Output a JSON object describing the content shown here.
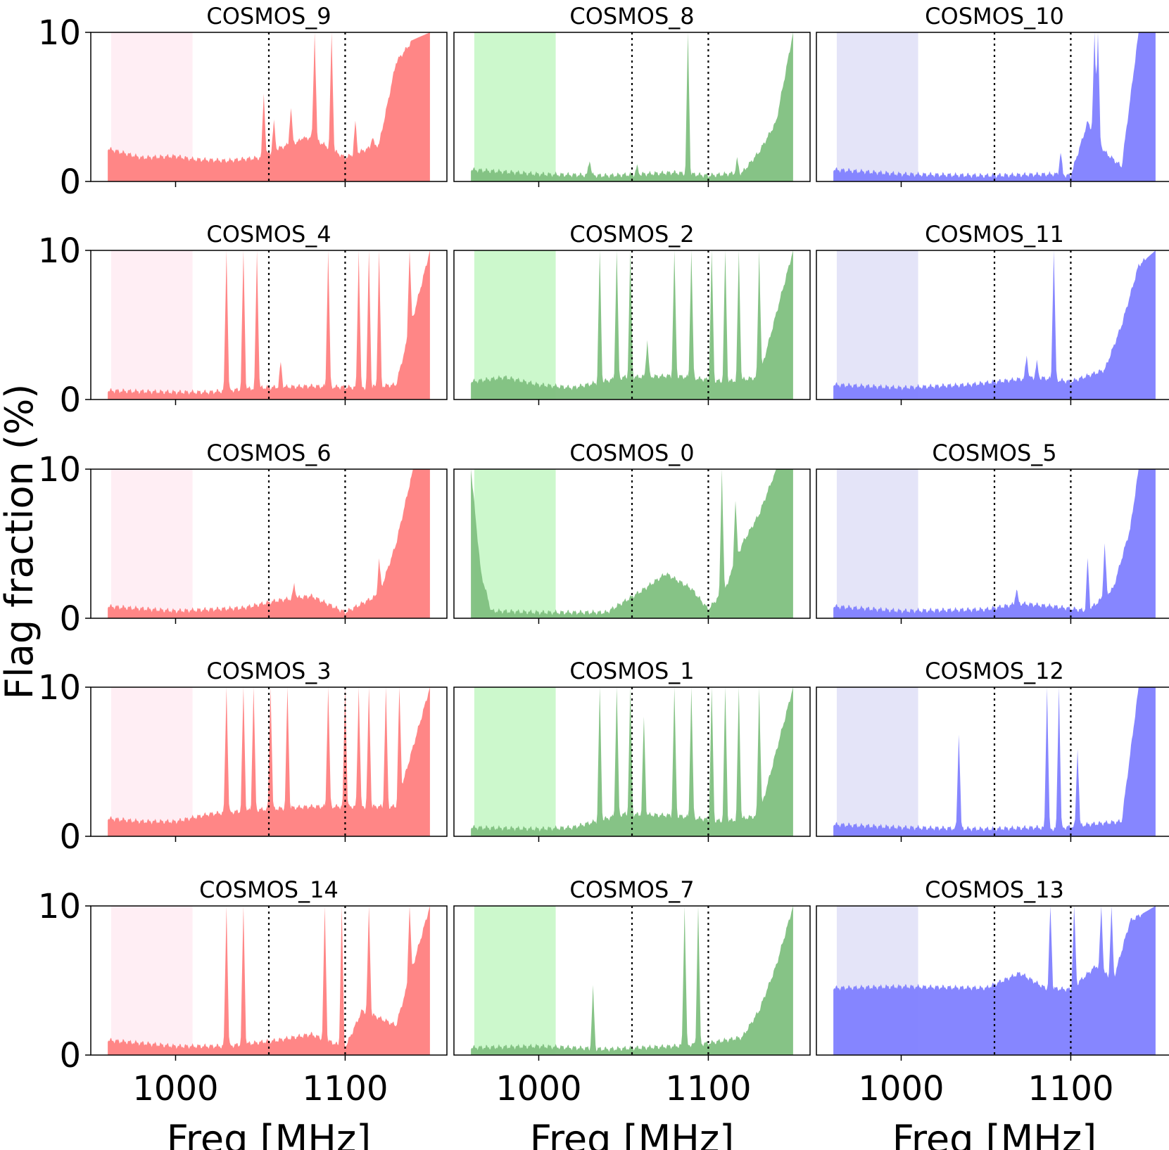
{
  "chart_data": {
    "type": "area",
    "ylabel": "Flag fraction (%)",
    "xlabel": "Freq [MHz]",
    "xlim": [
      950,
      1160
    ],
    "ylim": [
      0,
      10
    ],
    "xticks": [
      1000,
      1100
    ],
    "yticks": [
      0,
      10
    ],
    "markers": [
      1055,
      1100
    ],
    "band": [
      962,
      1010
    ],
    "colors": {
      "red": "#ff8080",
      "red_band": "#ffeef4",
      "green": "#80c080",
      "green_band": "#ccf8cc",
      "blue": "#8080ff",
      "blue_band": "#e4e4f8"
    },
    "panels": [
      {
        "title": "COSMOS_9",
        "color": "red",
        "range": [
          960,
          1150
        ],
        "base": [
          [
            960,
            2.2
          ],
          [
            980,
            1.6
          ],
          [
            1000,
            1.7
          ],
          [
            1010,
            1.5
          ],
          [
            1030,
            1.4
          ],
          [
            1050,
            1.6
          ],
          [
            1060,
            2.2
          ],
          [
            1080,
            3
          ],
          [
            1100,
            1.6
          ],
          [
            1120,
            2.5
          ],
          [
            1130,
            8
          ],
          [
            1140,
            9.5
          ],
          [
            1150,
            10
          ]
        ],
        "spikes": [
          [
            1052,
            6
          ],
          [
            1058,
            4
          ],
          [
            1068,
            5
          ],
          [
            1075,
            3
          ],
          [
            1082,
            10
          ],
          [
            1092,
            10
          ],
          [
            1106,
            4
          ],
          [
            1116,
            3
          ]
        ]
      },
      {
        "title": "COSMOS_8",
        "color": "green",
        "range": [
          960,
          1150
        ],
        "base": [
          [
            960,
            0.8
          ],
          [
            1000,
            0.5
          ],
          [
            1040,
            0.4
          ],
          [
            1080,
            0.6
          ],
          [
            1100,
            0.4
          ],
          [
            1120,
            0.6
          ],
          [
            1130,
            2
          ],
          [
            1140,
            4
          ],
          [
            1150,
            10
          ]
        ],
        "spikes": [
          [
            1088,
            10
          ],
          [
            1030,
            1.5
          ],
          [
            1058,
            1
          ],
          [
            1117,
            1.5
          ]
        ]
      },
      {
        "title": "COSMOS_10",
        "color": "blue",
        "range": [
          960,
          1150
        ],
        "base": [
          [
            960,
            0.8
          ],
          [
            1000,
            0.5
          ],
          [
            1050,
            0.4
          ],
          [
            1090,
            0.5
          ],
          [
            1100,
            0.4
          ],
          [
            1110,
            4
          ],
          [
            1120,
            2
          ],
          [
            1130,
            1
          ],
          [
            1140,
            10
          ],
          [
            1150,
            10
          ]
        ],
        "spikes": [
          [
            1114,
            10
          ],
          [
            1094,
            2
          ],
          [
            1116,
            10
          ]
        ]
      },
      {
        "title": "COSMOS_4",
        "color": "red",
        "range": [
          960,
          1150
        ],
        "base": [
          [
            960,
            0.6
          ],
          [
            1000,
            0.5
          ],
          [
            1020,
            0.5
          ],
          [
            1050,
            0.8
          ],
          [
            1080,
            0.9
          ],
          [
            1110,
            0.8
          ],
          [
            1130,
            1
          ],
          [
            1150,
            10
          ]
        ],
        "spikes": [
          [
            1030,
            10
          ],
          [
            1040,
            10
          ],
          [
            1048,
            10
          ],
          [
            1062,
            2.5
          ],
          [
            1090,
            10
          ],
          [
            1108,
            10
          ],
          [
            1114,
            10
          ],
          [
            1120,
            10
          ],
          [
            1138,
            10
          ]
        ]
      },
      {
        "title": "COSMOS_2",
        "color": "green",
        "range": [
          960,
          1150
        ],
        "base": [
          [
            960,
            1.2
          ],
          [
            980,
            1.5
          ],
          [
            1000,
            1
          ],
          [
            1020,
            0.8
          ],
          [
            1050,
            1.5
          ],
          [
            1080,
            1.6
          ],
          [
            1110,
            1.2
          ],
          [
            1130,
            1.5
          ],
          [
            1150,
            10
          ]
        ],
        "spikes": [
          [
            1036,
            10
          ],
          [
            1046,
            10
          ],
          [
            1054,
            10
          ],
          [
            1064,
            4
          ],
          [
            1080,
            10
          ],
          [
            1090,
            10
          ],
          [
            1102,
            10
          ],
          [
            1110,
            10
          ],
          [
            1118,
            10
          ],
          [
            1130,
            10
          ]
        ]
      },
      {
        "title": "COSMOS_11",
        "color": "blue",
        "range": [
          960,
          1150
        ],
        "base": [
          [
            960,
            1
          ],
          [
            1000,
            0.8
          ],
          [
            1040,
            1
          ],
          [
            1080,
            1.5
          ],
          [
            1100,
            1.2
          ],
          [
            1120,
            2
          ],
          [
            1130,
            5
          ],
          [
            1140,
            9
          ],
          [
            1150,
            10
          ]
        ],
        "spikes": [
          [
            1090,
            10
          ],
          [
            1074,
            3
          ],
          [
            1080,
            2.5
          ]
        ]
      },
      {
        "title": "COSMOS_6",
        "color": "red",
        "range": [
          960,
          1150
        ],
        "base": [
          [
            960,
            0.8
          ],
          [
            1000,
            0.5
          ],
          [
            1040,
            0.7
          ],
          [
            1060,
            1.2
          ],
          [
            1080,
            1.5
          ],
          [
            1100,
            0.4
          ],
          [
            1120,
            1.6
          ],
          [
            1130,
            5
          ],
          [
            1140,
            10
          ],
          [
            1150,
            10
          ]
        ],
        "spikes": [
          [
            1070,
            2.3
          ],
          [
            1120,
            4
          ]
        ]
      },
      {
        "title": "COSMOS_0",
        "color": "green",
        "range": [
          960,
          1150
        ],
        "base": [
          [
            960,
            10
          ],
          [
            966,
            3
          ],
          [
            972,
            0.5
          ],
          [
            1000,
            0.4
          ],
          [
            1040,
            0.4
          ],
          [
            1060,
            1.8
          ],
          [
            1075,
            3
          ],
          [
            1090,
            2
          ],
          [
            1100,
            0.6
          ],
          [
            1110,
            2
          ],
          [
            1120,
            5
          ],
          [
            1130,
            7
          ],
          [
            1140,
            10
          ],
          [
            1150,
            10
          ]
        ],
        "spikes": [
          [
            1108,
            10
          ],
          [
            1116,
            8
          ]
        ]
      },
      {
        "title": "COSMOS_5",
        "color": "blue",
        "range": [
          960,
          1150
        ],
        "base": [
          [
            960,
            0.8
          ],
          [
            1000,
            0.5
          ],
          [
            1050,
            0.6
          ],
          [
            1070,
            1
          ],
          [
            1090,
            0.8
          ],
          [
            1110,
            0.5
          ],
          [
            1125,
            2
          ],
          [
            1135,
            6
          ],
          [
            1140,
            10
          ],
          [
            1150,
            10
          ]
        ],
        "spikes": [
          [
            1068,
            2
          ],
          [
            1110,
            4
          ],
          [
            1120,
            5
          ]
        ]
      },
      {
        "title": "COSMOS_3",
        "color": "red",
        "range": [
          960,
          1150
        ],
        "base": [
          [
            960,
            1.2
          ],
          [
            980,
            1
          ],
          [
            1000,
            1
          ],
          [
            1020,
            1.5
          ],
          [
            1050,
            1.8
          ],
          [
            1080,
            2
          ],
          [
            1110,
            2
          ],
          [
            1130,
            2
          ],
          [
            1150,
            10
          ]
        ],
        "spikes": [
          [
            1030,
            10
          ],
          [
            1040,
            10
          ],
          [
            1046,
            10
          ],
          [
            1056,
            10
          ],
          [
            1066,
            10
          ],
          [
            1090,
            10
          ],
          [
            1100,
            10
          ],
          [
            1108,
            10
          ],
          [
            1114,
            10
          ],
          [
            1124,
            10
          ],
          [
            1132,
            10
          ]
        ]
      },
      {
        "title": "COSMOS_1",
        "color": "green",
        "range": [
          960,
          1150
        ],
        "base": [
          [
            960,
            0.6
          ],
          [
            1000,
            0.5
          ],
          [
            1020,
            0.6
          ],
          [
            1050,
            1.5
          ],
          [
            1080,
            1.4
          ],
          [
            1110,
            1
          ],
          [
            1130,
            1.4
          ],
          [
            1150,
            10
          ]
        ],
        "spikes": [
          [
            1036,
            10
          ],
          [
            1046,
            10
          ],
          [
            1054,
            10
          ],
          [
            1062,
            8
          ],
          [
            1080,
            10
          ],
          [
            1090,
            10
          ],
          [
            1102,
            10
          ],
          [
            1110,
            10
          ],
          [
            1118,
            10
          ],
          [
            1130,
            10
          ]
        ]
      },
      {
        "title": "COSMOS_12",
        "color": "blue",
        "range": [
          960,
          1150
        ],
        "base": [
          [
            960,
            0.8
          ],
          [
            1000,
            0.6
          ],
          [
            1050,
            0.5
          ],
          [
            1080,
            0.6
          ],
          [
            1090,
            0.5
          ],
          [
            1110,
            0.8
          ],
          [
            1130,
            1
          ],
          [
            1140,
            10
          ],
          [
            1150,
            10
          ]
        ],
        "spikes": [
          [
            1086,
            10
          ],
          [
            1093,
            10
          ],
          [
            1034,
            7
          ],
          [
            1104,
            6
          ]
        ]
      },
      {
        "title": "COSMOS_14",
        "color": "red",
        "range": [
          960,
          1150
        ],
        "base": [
          [
            960,
            1
          ],
          [
            1000,
            0.6
          ],
          [
            1030,
            0.6
          ],
          [
            1060,
            1
          ],
          [
            1080,
            1.4
          ],
          [
            1100,
            0.5
          ],
          [
            1110,
            3
          ],
          [
            1130,
            2
          ],
          [
            1150,
            10
          ]
        ],
        "spikes": [
          [
            1030,
            10
          ],
          [
            1040,
            10
          ],
          [
            1088,
            10
          ],
          [
            1098,
            10
          ],
          [
            1114,
            10
          ],
          [
            1138,
            10
          ]
        ]
      },
      {
        "title": "COSMOS_7",
        "color": "green",
        "range": [
          960,
          1150
        ],
        "base": [
          [
            960,
            0.5
          ],
          [
            1000,
            0.6
          ],
          [
            1040,
            0.4
          ],
          [
            1080,
            0.6
          ],
          [
            1100,
            0.8
          ],
          [
            1120,
            1.2
          ],
          [
            1130,
            3
          ],
          [
            1140,
            6
          ],
          [
            1150,
            10
          ]
        ],
        "spikes": [
          [
            1086,
            10
          ],
          [
            1094,
            10
          ],
          [
            1032,
            4.5
          ]
        ]
      },
      {
        "title": "COSMOS_13",
        "color": "blue",
        "range": [
          960,
          1150
        ],
        "base": [
          [
            960,
            4.5
          ],
          [
            1000,
            4.6
          ],
          [
            1050,
            4.5
          ],
          [
            1070,
            5.5
          ],
          [
            1085,
            4.5
          ],
          [
            1100,
            4.4
          ],
          [
            1115,
            6
          ],
          [
            1125,
            5
          ],
          [
            1135,
            9
          ],
          [
            1150,
            10
          ]
        ],
        "spikes": [
          [
            1088,
            10
          ],
          [
            1102,
            10
          ],
          [
            1118,
            10
          ],
          [
            1124,
            10
          ]
        ]
      }
    ]
  }
}
